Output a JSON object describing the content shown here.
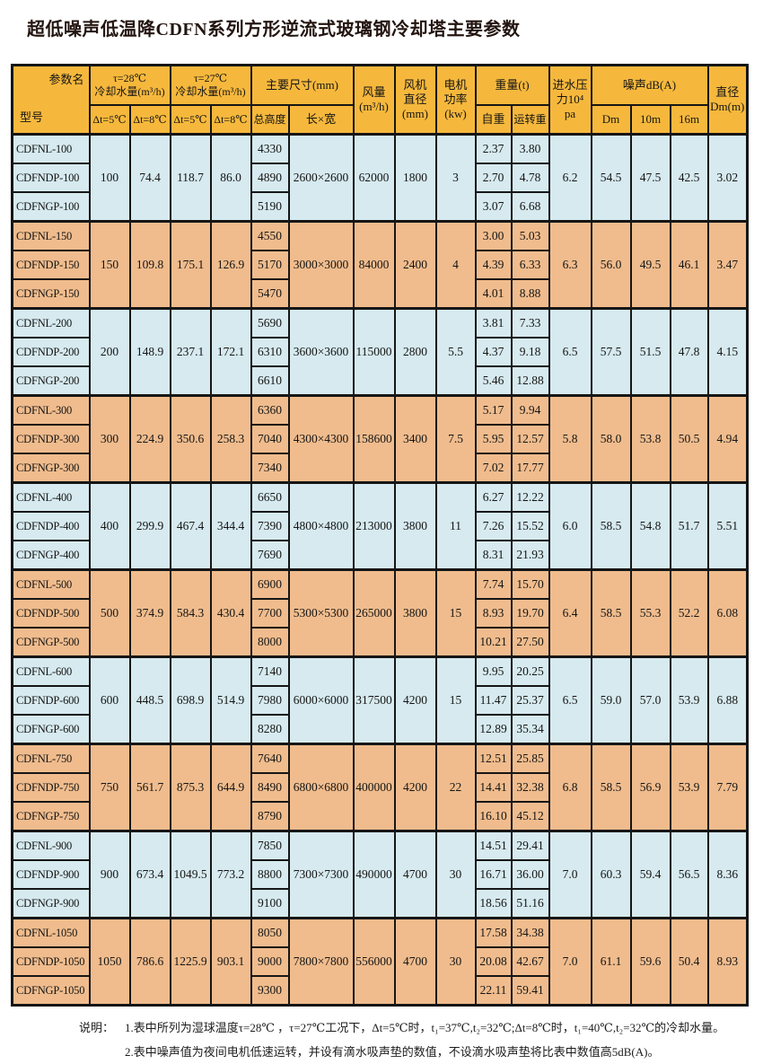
{
  "title": "超低噪声低温降CDFN系列方形逆流式玻璃钢冷却塔主要参数",
  "colors": {
    "header_bg": "#F6B83C",
    "row_blue": "#D6EAEF",
    "row_tan": "#F0BC8D",
    "border": "#161616"
  },
  "table": {
    "header": {
      "corner_param": "参数名",
      "corner_model": "型号",
      "tau28": "τ=28℃\n冷却水量(m³/h)",
      "tau27": "τ=27℃\n冷却水量(m³/h)",
      "dt5_28": "Δt=5℃",
      "dt8_28": "Δt=8℃",
      "dt5_27": "Δt=5℃",
      "dt8_27": "Δt=8℃",
      "main_dims": "主要尺寸(mm)",
      "total_height": "总高度",
      "length_width": "长×宽",
      "airflow": "风量\n(m³/h)",
      "fan_diameter": "风机\n直径\n(mm)",
      "motor_power": "电机\n功率\n(kw)",
      "weight": "重量(t)",
      "self_weight": "自重",
      "running_weight": "运转重",
      "inlet_pressure": "进水压\n力10⁴\npa",
      "noise": "噪声dB(A)",
      "noise_dm": "Dm",
      "noise_10m": "10m",
      "noise_16m": "16m",
      "diameter": "直径\nDm(m)"
    },
    "groups": [
      {
        "shade": "blue",
        "capacity": [
          "100",
          "74.4",
          "118.7",
          "86.0"
        ],
        "dims": "2600×2600",
        "airflow": "62000",
        "fan": "1800",
        "motor": "3",
        "pressure": "6.2",
        "noise": [
          "54.5",
          "47.5",
          "42.5"
        ],
        "diameter": "3.02",
        "rows": [
          {
            "model": "CDFNL-100",
            "height": "4330",
            "self": "2.37",
            "run": "3.80"
          },
          {
            "model": "CDFNDP-100",
            "height": "4890",
            "self": "2.70",
            "run": "4.78"
          },
          {
            "model": "CDFNGP-100",
            "height": "5190",
            "self": "3.07",
            "run": "6.68"
          }
        ]
      },
      {
        "shade": "tan",
        "capacity": [
          "150",
          "109.8",
          "175.1",
          "126.9"
        ],
        "dims": "3000×3000",
        "airflow": "84000",
        "fan": "2400",
        "motor": "4",
        "pressure": "6.3",
        "noise": [
          "56.0",
          "49.5",
          "46.1"
        ],
        "diameter": "3.47",
        "rows": [
          {
            "model": "CDFNL-150",
            "height": "4550",
            "self": "3.00",
            "run": "5.03"
          },
          {
            "model": "CDFNDP-150",
            "height": "5170",
            "self": "4.39",
            "run": "6.33"
          },
          {
            "model": "CDFNGP-150",
            "height": "5470",
            "self": "4.01",
            "run": "8.88"
          }
        ]
      },
      {
        "shade": "blue",
        "capacity": [
          "200",
          "148.9",
          "237.1",
          "172.1"
        ],
        "dims": "3600×3600",
        "airflow": "115000",
        "fan": "2800",
        "motor": "5.5",
        "pressure": "6.5",
        "noise": [
          "57.5",
          "51.5",
          "47.8"
        ],
        "diameter": "4.15",
        "rows": [
          {
            "model": "CDFNL-200",
            "height": "5690",
            "self": "3.81",
            "run": "7.33"
          },
          {
            "model": "CDFNDP-200",
            "height": "6310",
            "self": "4.37",
            "run": "9.18"
          },
          {
            "model": "CDFNGP-200",
            "height": "6610",
            "self": "5.46",
            "run": "12.88"
          }
        ]
      },
      {
        "shade": "tan",
        "capacity": [
          "300",
          "224.9",
          "350.6",
          "258.3"
        ],
        "dims": "4300×4300",
        "airflow": "158600",
        "fan": "3400",
        "motor": "7.5",
        "pressure": "5.8",
        "noise": [
          "58.0",
          "53.8",
          "50.5"
        ],
        "diameter": "4.94",
        "rows": [
          {
            "model": "CDFNL-300",
            "height": "6360",
            "self": "5.17",
            "run": "9.94"
          },
          {
            "model": "CDFNDP-300",
            "height": "7040",
            "self": "5.95",
            "run": "12.57"
          },
          {
            "model": "CDFNGP-300",
            "height": "7340",
            "self": "7.02",
            "run": "17.77"
          }
        ]
      },
      {
        "shade": "blue",
        "capacity": [
          "400",
          "299.9",
          "467.4",
          "344.4"
        ],
        "dims": "4800×4800",
        "airflow": "213000",
        "fan": "3800",
        "motor": "11",
        "pressure": "6.0",
        "noise": [
          "58.5",
          "54.8",
          "51.7"
        ],
        "diameter": "5.51",
        "rows": [
          {
            "model": "CDFNL-400",
            "height": "6650",
            "self": "6.27",
            "run": "12.22"
          },
          {
            "model": "CDFNDP-400",
            "height": "7390",
            "self": "7.26",
            "run": "15.52"
          },
          {
            "model": "CDFNGP-400",
            "height": "7690",
            "self": "8.31",
            "run": "21.93"
          }
        ]
      },
      {
        "shade": "tan",
        "capacity": [
          "500",
          "374.9",
          "584.3",
          "430.4"
        ],
        "dims": "5300×5300",
        "airflow": "265000",
        "fan": "3800",
        "motor": "15",
        "pressure": "6.4",
        "noise": [
          "58.5",
          "55.3",
          "52.2"
        ],
        "diameter": "6.08",
        "rows": [
          {
            "model": "CDFNL-500",
            "height": "6900",
            "self": "7.74",
            "run": "15.70"
          },
          {
            "model": "CDFNDP-500",
            "height": "7700",
            "self": "8.93",
            "run": "19.70"
          },
          {
            "model": "CDFNGP-500",
            "height": "8000",
            "self": "10.21",
            "run": "27.50"
          }
        ]
      },
      {
        "shade": "blue",
        "capacity": [
          "600",
          "448.5",
          "698.9",
          "514.9"
        ],
        "dims": "6000×6000",
        "airflow": "317500",
        "fan": "4200",
        "motor": "15",
        "pressure": "6.5",
        "noise": [
          "59.0",
          "57.0",
          "53.9"
        ],
        "diameter": "6.88",
        "rows": [
          {
            "model": "CDFNL-600",
            "height": "7140",
            "self": "9.95",
            "run": "20.25"
          },
          {
            "model": "CDFNDP-600",
            "height": "7980",
            "self": "11.47",
            "run": "25.37"
          },
          {
            "model": "CDFNGP-600",
            "height": "8280",
            "self": "12.89",
            "run": "35.34"
          }
        ]
      },
      {
        "shade": "tan",
        "capacity": [
          "750",
          "561.7",
          "875.3",
          "644.9"
        ],
        "dims": "6800×6800",
        "airflow": "400000",
        "fan": "4200",
        "motor": "22",
        "pressure": "6.8",
        "noise": [
          "58.5",
          "56.9",
          "53.9"
        ],
        "diameter": "7.79",
        "rows": [
          {
            "model": "CDFNL-750",
            "height": "7640",
            "self": "12.51",
            "run": "25.85"
          },
          {
            "model": "CDFNDP-750",
            "height": "8490",
            "self": "14.41",
            "run": "32.38"
          },
          {
            "model": "CDFNGP-750",
            "height": "8790",
            "self": "16.10",
            "run": "45.12"
          }
        ]
      },
      {
        "shade": "blue",
        "capacity": [
          "900",
          "673.4",
          "1049.5",
          "773.2"
        ],
        "dims": "7300×7300",
        "airflow": "490000",
        "fan": "4700",
        "motor": "30",
        "pressure": "7.0",
        "noise": [
          "60.3",
          "59.4",
          "56.5"
        ],
        "diameter": "8.36",
        "rows": [
          {
            "model": "CDFNL-900",
            "height": "7850",
            "self": "14.51",
            "run": "29.41"
          },
          {
            "model": "CDFNDP-900",
            "height": "8800",
            "self": "16.71",
            "run": "36.00"
          },
          {
            "model": "CDFNGP-900",
            "height": "9100",
            "self": "18.56",
            "run": "51.16"
          }
        ]
      },
      {
        "shade": "tan",
        "capacity": [
          "1050",
          "786.6",
          "1225.9",
          "903.1"
        ],
        "dims": "7800×7800",
        "airflow": "556000",
        "fan": "4700",
        "motor": "30",
        "pressure": "7.0",
        "noise": [
          "61.1",
          "59.6",
          "50.4"
        ],
        "diameter": "8.93",
        "rows": [
          {
            "model": "CDFNL-1050",
            "height": "8050",
            "self": "17.58",
            "run": "34.38"
          },
          {
            "model": "CDFNDP-1050",
            "height": "9000",
            "self": "20.08",
            "run": "42.67"
          },
          {
            "model": "CDFNGP-1050",
            "height": "9300",
            "self": "22.11",
            "run": "59.41"
          }
        ]
      }
    ]
  },
  "notes": {
    "label": "说明：",
    "items": [
      "1.表中所列为湿球温度τ=28℃ ，τ=27℃工况下，Δt=5℃时，t₁=37℃,t₂=32℃;Δt=8℃时，t₁=40℃,t₂=32℃的冷却水量。",
      "2.表中噪声值为夜间电机低速运转，并设有滴水吸声垫的数值，不设滴水吸声垫将比表中数值高5dB(A)。"
    ]
  }
}
